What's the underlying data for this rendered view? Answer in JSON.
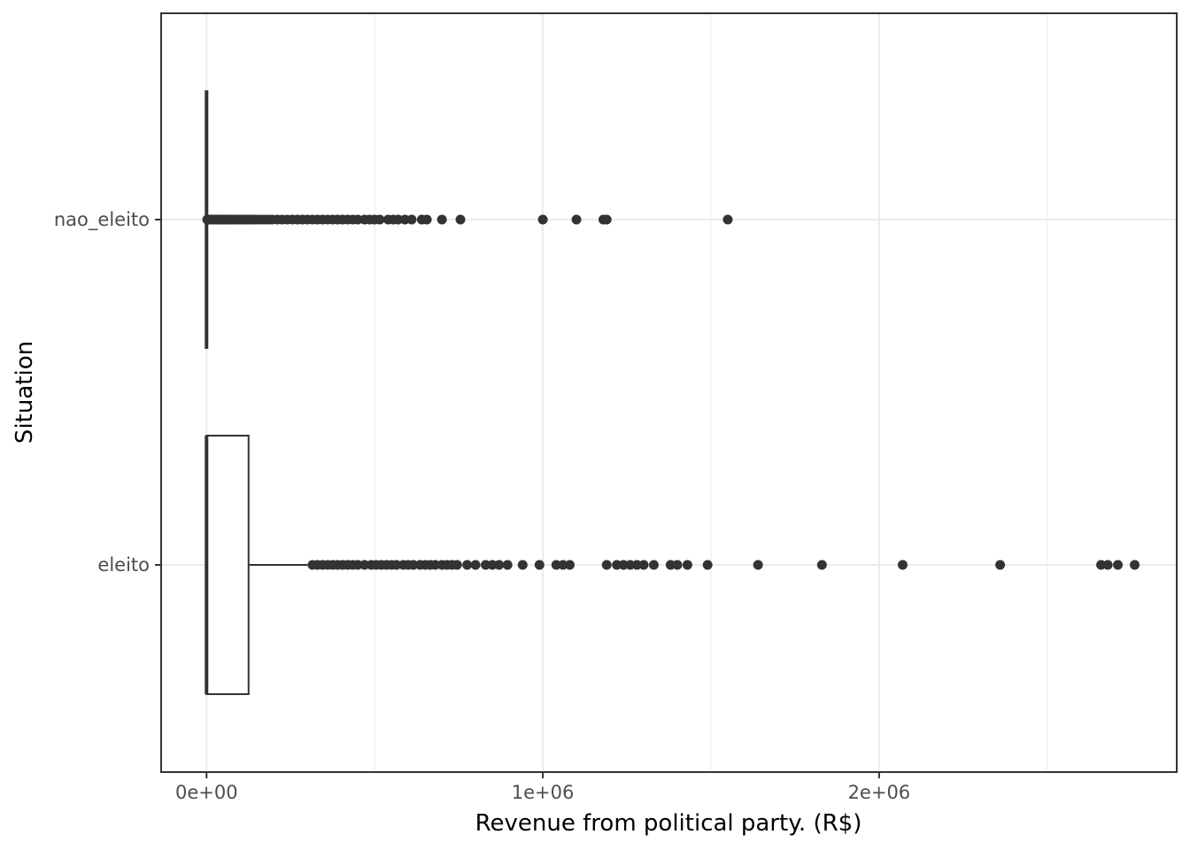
{
  "chart_data": {
    "type": "boxplot",
    "orientation": "horizontal",
    "xlabel": "Revenue from political party. (R$)",
    "ylabel": "Situation",
    "xlim": [
      -135000,
      2885000
    ],
    "x_ticks": [
      {
        "value": 0,
        "label": "0e+00"
      },
      {
        "value": 1000000,
        "label": "1e+06"
      },
      {
        "value": 2000000,
        "label": "2e+06"
      }
    ],
    "grid": true,
    "categories": [
      "eleito",
      "nao_eleito"
    ],
    "series": [
      {
        "category": "nao_eleito",
        "min": 0,
        "q1": 0,
        "median": 0,
        "q3": 0,
        "max": 0,
        "outliers": [
          2000,
          5000,
          9000,
          13000,
          17000,
          21000,
          25000,
          29000,
          33000,
          37000,
          41000,
          45000,
          50000,
          55000,
          60000,
          65000,
          70000,
          75000,
          80000,
          86000,
          92000,
          98000,
          105000,
          112000,
          120000,
          128000,
          136000,
          145000,
          155000,
          165000,
          175000,
          185000,
          195000,
          210000,
          225000,
          240000,
          255000,
          270000,
          285000,
          300000,
          315000,
          330000,
          345000,
          360000,
          375000,
          390000,
          405000,
          420000,
          435000,
          450000,
          470000,
          485000,
          500000,
          515000,
          540000,
          555000,
          570000,
          590000,
          610000,
          640000,
          655000,
          700000,
          755000,
          1000000,
          1100000,
          1180000,
          1190000,
          1550000
        ]
      },
      {
        "category": "eleito",
        "min": 0,
        "q1": 0,
        "median": 0,
        "q3": 125000,
        "max": 300000,
        "outliers": [
          315000,
          330000,
          345000,
          360000,
          375000,
          390000,
          405000,
          420000,
          435000,
          450000,
          470000,
          490000,
          505000,
          520000,
          535000,
          550000,
          565000,
          585000,
          600000,
          615000,
          635000,
          650000,
          665000,
          680000,
          700000,
          715000,
          730000,
          745000,
          775000,
          800000,
          830000,
          850000,
          870000,
          895000,
          940000,
          990000,
          1040000,
          1060000,
          1080000,
          1190000,
          1220000,
          1240000,
          1260000,
          1280000,
          1300000,
          1330000,
          1380000,
          1400000,
          1430000,
          1490000,
          1640000,
          1830000,
          2070000,
          2360000,
          2660000,
          2680000,
          2710000,
          2760000
        ]
      }
    ]
  }
}
